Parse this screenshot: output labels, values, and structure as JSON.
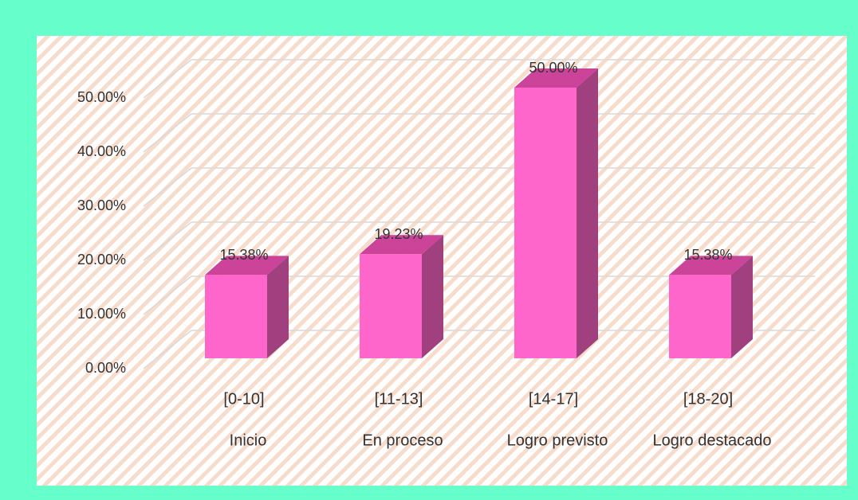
{
  "chart_data": {
    "type": "bar3d",
    "categories": [
      "[0-10]",
      "[11-13]",
      "[14-17]",
      "[18-20]"
    ],
    "category_descriptions": [
      "Inicio",
      "En proceso",
      "Logro previsto",
      "Logro destacado"
    ],
    "values": [
      15.38,
      19.23,
      50,
      15.38
    ],
    "value_labels": [
      "15.38%",
      "19.23%",
      "50.00%",
      "15.38%"
    ],
    "color": "#ff66cc",
    "ylim": [
      0,
      50
    ],
    "yticks": [
      {
        "value": 0,
        "label": "0.00%"
      },
      {
        "value": 10,
        "label": "10.00%"
      },
      {
        "value": 20,
        "label": "20.00%"
      },
      {
        "value": 30,
        "label": "30.00%"
      },
      {
        "value": 40,
        "label": "40.00%"
      },
      {
        "value": 50,
        "label": "50.00%"
      }
    ],
    "grid": true
  }
}
